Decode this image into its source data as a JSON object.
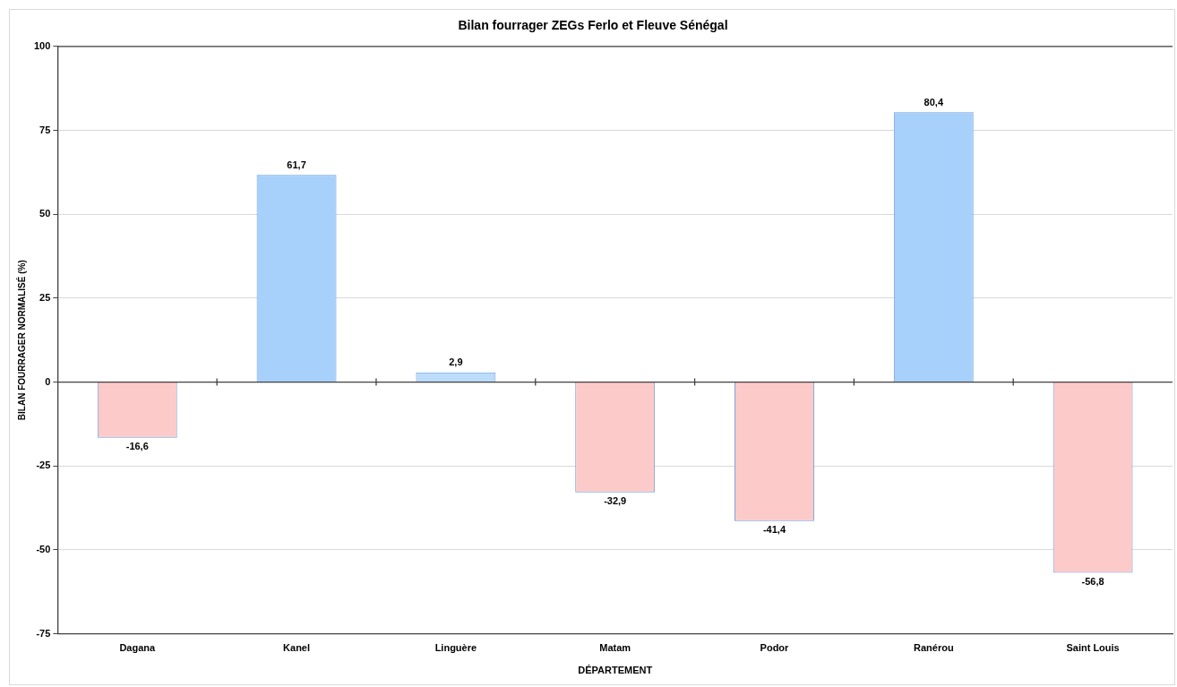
{
  "chart_data": {
    "type": "bar",
    "title": "Bilan fourrager ZEGs Ferlo et Fleuve Sénégal",
    "xlabel": "DÉPARTEMENT",
    "ylabel": "BILAN FOURRAGER NORMALISÉ (%)",
    "categories": [
      "Dagana",
      "Kanel",
      "Linguère",
      "Matam",
      "Podor",
      "Ranérou",
      "Saint Louis"
    ],
    "values": [
      -16.6,
      61.7,
      2.9,
      -32.9,
      -41.4,
      80.4,
      -56.8
    ],
    "colors": [
      "#fdcaca",
      "#a7d0fb",
      "#bcdcfc",
      "#fdcaca",
      "#fdcaca",
      "#a7d0fb",
      "#fdcaca"
    ],
    "value_labels": [
      "-16,6",
      "61,7",
      "2,9",
      "-32,9",
      "-41,4",
      "80,4",
      "-56,8"
    ],
    "ylim": [
      -75,
      100
    ],
    "yticks": [
      -75,
      -50,
      -25,
      0,
      25,
      50,
      75,
      100
    ],
    "grid": "y",
    "legend": false
  }
}
